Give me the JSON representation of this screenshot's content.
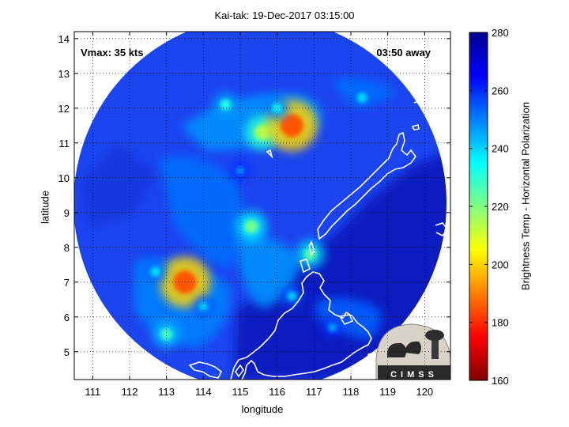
{
  "title": "Kai-tak: 19-Dec-2017 03:15:00",
  "xlabel": "longitude",
  "ylabel": "latitude",
  "annotations": {
    "vmax": "Vmax: 35 kts",
    "away": "03:50 away"
  },
  "logo_text": "CIMSS",
  "colorbar": {
    "label": "Brightness Temp - Horizontal Polarization",
    "range": [
      160,
      280
    ],
    "ticks": [
      160,
      180,
      200,
      220,
      240,
      260,
      280
    ],
    "colormap": "jet-reversed"
  },
  "chart_data": {
    "type": "heatmap",
    "title": "Kai-tak: 19-Dec-2017 03:15:00",
    "xlabel": "longitude",
    "ylabel": "latitude",
    "xlim": [
      110.5,
      120.7
    ],
    "ylim": [
      4.2,
      14.2
    ],
    "xticks": [
      111,
      112,
      113,
      114,
      115,
      116,
      117,
      118,
      119,
      120
    ],
    "yticks": [
      5,
      6,
      7,
      8,
      9,
      10,
      11,
      12,
      13,
      14
    ],
    "grid": true,
    "swath_center": [
      115.6,
      9.3
    ],
    "cold_spots": [
      {
        "lon": 115.6,
        "lat": 11.3,
        "value": 215
      },
      {
        "lon": 116.4,
        "lat": 11.5,
        "value": 185
      },
      {
        "lon": 113.5,
        "lat": 7.0,
        "value": 185
      },
      {
        "lon": 115.3,
        "lat": 8.6,
        "value": 222
      },
      {
        "lon": 116.9,
        "lat": 7.8,
        "value": 225
      },
      {
        "lon": 113.0,
        "lat": 5.5,
        "value": 228
      },
      {
        "lon": 114.6,
        "lat": 12.1,
        "value": 232
      },
      {
        "lon": 116.0,
        "lat": 12.0,
        "value": 236
      },
      {
        "lon": 118.3,
        "lat": 12.3,
        "value": 238
      },
      {
        "lon": 112.7,
        "lat": 7.3,
        "value": 238
      },
      {
        "lon": 114.0,
        "lat": 6.3,
        "value": 240
      },
      {
        "lon": 116.4,
        "lat": 6.6,
        "value": 240
      },
      {
        "lon": 117.5,
        "lat": 5.7,
        "value": 244
      },
      {
        "lon": 115.0,
        "lat": 10.2,
        "value": 246
      }
    ]
  }
}
